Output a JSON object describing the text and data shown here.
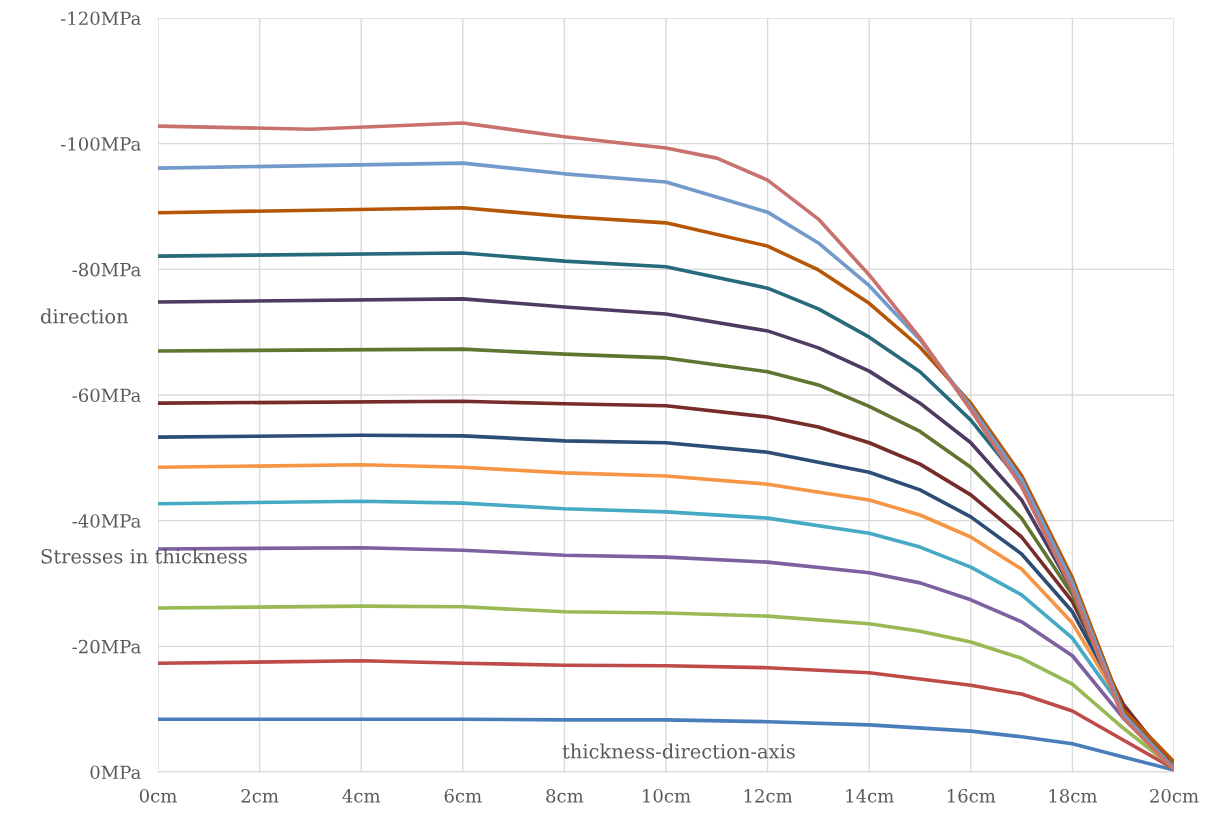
{
  "chart_data": {
    "type": "line",
    "annotations": [
      "direction",
      "Stresses in thickness",
      "thickness-direction-axis"
    ],
    "xlim": [
      0,
      20
    ],
    "xticks": [
      {
        "value": 0,
        "label": "0cm"
      },
      {
        "value": 2,
        "label": "2cm"
      },
      {
        "value": 4,
        "label": "4cm"
      },
      {
        "value": 6,
        "label": "6cm"
      },
      {
        "value": 8,
        "label": "8cm"
      },
      {
        "value": 10,
        "label": "10cm"
      },
      {
        "value": 12,
        "label": "12cm"
      },
      {
        "value": 14,
        "label": "14cm"
      },
      {
        "value": 16,
        "label": "16cm"
      },
      {
        "value": 18,
        "label": "18cm"
      },
      {
        "value": 20,
        "label": "20cm"
      }
    ],
    "ylim": [
      0,
      -120
    ],
    "yticks": [
      {
        "value": 0,
        "label": "0MPa"
      },
      {
        "value": -20,
        "label": "-20MPa"
      },
      {
        "value": -40,
        "label": "-40MPa"
      },
      {
        "value": -60,
        "label": "-60MPa"
      },
      {
        "value": -80,
        "label": "-80MPa"
      },
      {
        "value": -100,
        "label": "-100MPa"
      },
      {
        "value": -120,
        "label": "-120MPa"
      }
    ],
    "grid": true,
    "legend": false,
    "marker": "none",
    "line_style": "solid",
    "series": [
      {
        "color": "#4a7ebb",
        "x": [
          0,
          4,
          6,
          8,
          10,
          12,
          14,
          16,
          17,
          18,
          19,
          20
        ],
        "values": [
          -8.4,
          -8.4,
          -8.4,
          -8.3,
          -8.3,
          -8.0,
          -7.5,
          -6.5,
          -5.6,
          -4.5,
          -2.4,
          -0.3
        ]
      },
      {
        "color": "#be4b48",
        "x": [
          0,
          4,
          6,
          8,
          10,
          12,
          14,
          16,
          17,
          18,
          19,
          20
        ],
        "values": [
          -17.3,
          -17.7,
          -17.3,
          -17.0,
          -16.9,
          -16.6,
          -15.8,
          -13.8,
          -12.4,
          -9.7,
          -5.1,
          -0.5
        ]
      },
      {
        "color": "#98b954",
        "x": [
          0,
          4,
          6,
          8,
          10,
          12,
          14,
          15,
          16,
          17,
          18,
          19,
          20
        ],
        "values": [
          -26.1,
          -26.4,
          -26.3,
          -25.5,
          -25.3,
          -24.8,
          -23.6,
          -22.4,
          -20.7,
          -18.1,
          -14.0,
          -7.0,
          -0.6
        ]
      },
      {
        "color": "#7d60a0",
        "x": [
          0,
          4,
          6,
          8,
          10,
          12,
          14,
          15,
          16,
          17,
          18,
          19,
          20
        ],
        "values": [
          -35.5,
          -35.7,
          -35.3,
          -34.5,
          -34.2,
          -33.4,
          -31.7,
          -30.1,
          -27.4,
          -23.9,
          -18.5,
          -8.6,
          -0.6
        ]
      },
      {
        "color": "#46aac5",
        "x": [
          0,
          4,
          6,
          8,
          10,
          12,
          14,
          15,
          16,
          17,
          18,
          19,
          20
        ],
        "values": [
          -42.7,
          -43.1,
          -42.8,
          -41.9,
          -41.4,
          -40.4,
          -38.0,
          -35.8,
          -32.6,
          -28.2,
          -21.3,
          -9.9,
          -0.6
        ]
      },
      {
        "color": "#f69544",
        "x": [
          0,
          4,
          6,
          8,
          10,
          12,
          14,
          15,
          16,
          17,
          18,
          19,
          20
        ],
        "values": [
          -48.5,
          -48.9,
          -48.5,
          -47.6,
          -47.1,
          -45.8,
          -43.3,
          -40.9,
          -37.4,
          -32.3,
          -23.7,
          -10.3,
          -0.6
        ]
      },
      {
        "color": "#2c4d75",
        "x": [
          0,
          4,
          6,
          8,
          10,
          12,
          14,
          15,
          16,
          17,
          18,
          19,
          20
        ],
        "values": [
          -53.3,
          -53.6,
          -53.5,
          -52.7,
          -52.4,
          -50.9,
          -47.7,
          -44.9,
          -40.6,
          -34.7,
          -25.5,
          -10.7,
          -0.6
        ]
      },
      {
        "color": "#772c2a",
        "x": [
          0,
          6,
          8,
          10,
          12,
          13,
          14,
          15,
          16,
          17,
          18,
          19,
          20
        ],
        "values": [
          -58.7,
          -59.0,
          -58.6,
          -58.3,
          -56.5,
          -54.9,
          -52.4,
          -49.0,
          -44.1,
          -37.4,
          -27.1,
          -10.8,
          -0.6
        ]
      },
      {
        "color": "#5f7530",
        "x": [
          0,
          6,
          8,
          10,
          12,
          13,
          14,
          15,
          16,
          17,
          18,
          19,
          20
        ],
        "values": [
          -67.0,
          -67.3,
          -66.5,
          -65.9,
          -63.7,
          -61.6,
          -58.2,
          -54.2,
          -48.5,
          -40.4,
          -28.2,
          -9.2,
          -0.5
        ]
      },
      {
        "color": "#4d3b62",
        "x": [
          0,
          6,
          8,
          10,
          12,
          13,
          14,
          15,
          16,
          17,
          18,
          19,
          20
        ],
        "values": [
          -74.8,
          -75.3,
          -74.0,
          -72.9,
          -70.2,
          -67.5,
          -63.8,
          -58.7,
          -52.4,
          -43.3,
          -29.0,
          -9.2,
          -0.3
        ]
      },
      {
        "color": "#276a7c",
        "x": [
          0,
          6,
          8,
          10,
          12,
          13,
          14,
          15,
          16,
          17,
          18,
          19,
          20
        ],
        "values": [
          -82.1,
          -82.6,
          -81.3,
          -80.4,
          -77.0,
          -73.7,
          -69.2,
          -63.7,
          -56.0,
          -46.0,
          -29.8,
          -9.5,
          -0.3
        ]
      },
      {
        "color": "#b65708",
        "x": [
          0,
          6,
          8,
          10,
          12,
          13,
          14,
          15,
          16,
          17,
          18,
          19,
          20
        ],
        "values": [
          -89.0,
          -89.8,
          -88.4,
          -87.4,
          -83.7,
          -79.9,
          -74.6,
          -67.6,
          -58.7,
          -47.2,
          -30.9,
          -9.9,
          -1.6
        ]
      },
      {
        "color": "#729aca",
        "x": [
          0,
          6,
          8,
          10,
          12,
          13,
          14,
          15,
          16,
          17,
          18,
          19,
          20
        ],
        "values": [
          -96.1,
          -96.9,
          -95.2,
          -93.9,
          -89.1,
          -84.2,
          -77.4,
          -68.8,
          -58.1,
          -46.5,
          -30.1,
          -9.2,
          -0.6
        ]
      },
      {
        "color": "#c9716c",
        "x": [
          0,
          3,
          6,
          8,
          10,
          11,
          12,
          13,
          14,
          15,
          16,
          17,
          18,
          19,
          20
        ],
        "values": [
          -102.8,
          -102.3,
          -103.3,
          -101.1,
          -99.3,
          -97.7,
          -94.2,
          -88.0,
          -79.1,
          -69.1,
          -57.6,
          -45.4,
          -29.0,
          -8.6,
          -0.3
        ]
      }
    ]
  }
}
